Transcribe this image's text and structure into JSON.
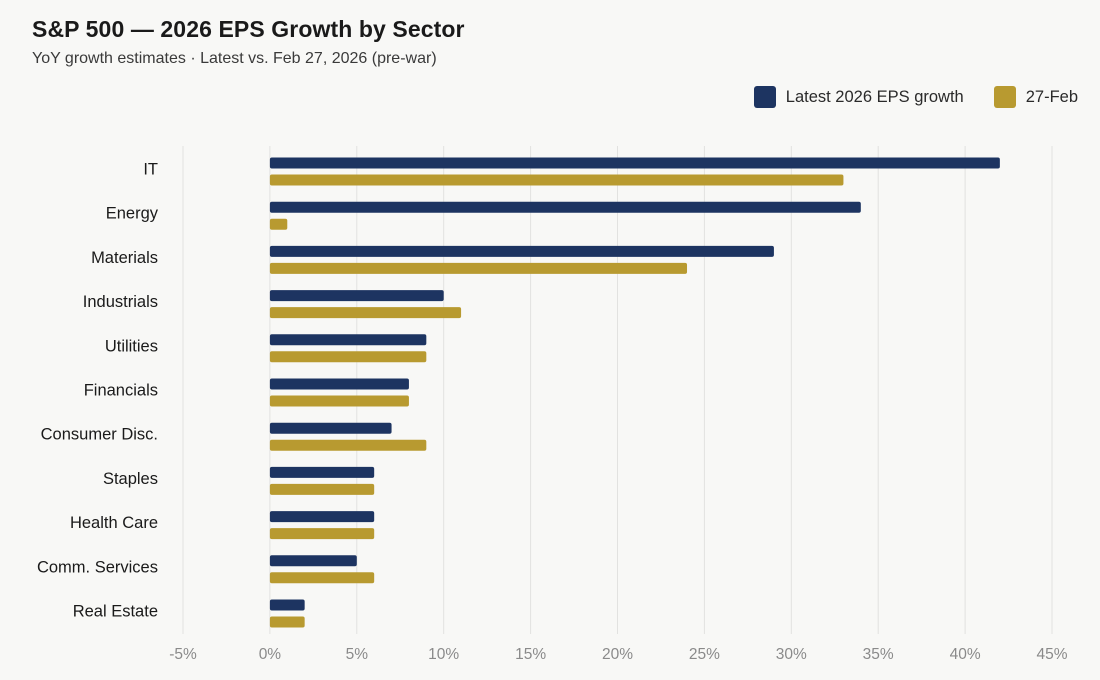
{
  "header": {
    "title": "S&P 500 — 2026 EPS Growth by Sector",
    "subtitle": "YoY growth estimates · Latest vs. Feb 27, 2026 (pre-war)"
  },
  "chart_data": {
    "type": "bar",
    "orientation": "horizontal",
    "title": "S&P 500 — 2026 EPS Growth by Sector",
    "subtitle": "YoY growth estimates · Latest vs. Feb 27, 2026 (pre-war)",
    "xlabel": "",
    "ylabel": "",
    "categories": [
      "IT",
      "Energy",
      "Materials",
      "Industrials",
      "Utilities",
      "Financials",
      "Consumer Disc.",
      "Staples",
      "Health Care",
      "Comm. Services",
      "Real Estate"
    ],
    "series": [
      {
        "name": "Latest 2026 EPS growth",
        "color": "#1d3461",
        "values": [
          42,
          34,
          29,
          10,
          9,
          8,
          7,
          6,
          6,
          5,
          2
        ]
      },
      {
        "name": "27-Feb",
        "color": "#b89a30",
        "values": [
          33,
          1,
          24,
          11,
          9,
          8,
          9,
          6,
          6,
          6,
          2
        ]
      }
    ],
    "xlim": [
      -5,
      45
    ],
    "xticks": [
      -5,
      0,
      5,
      10,
      15,
      20,
      25,
      30,
      35,
      40,
      45
    ],
    "tick_suffix": "%",
    "grid": "vertical",
    "legend_position": "top-right"
  }
}
